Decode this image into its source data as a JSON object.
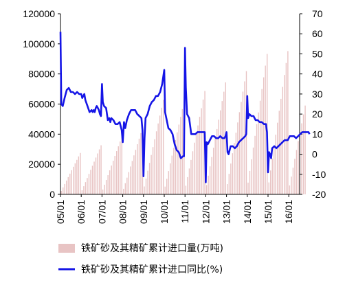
{
  "chart_data": {
    "type": "bar+line",
    "title": "",
    "x_tick_labels": [
      "05/01",
      "06/01",
      "07/01",
      "08/01",
      "09/01",
      "10/01",
      "11/01",
      "12/01",
      "13/01",
      "14/01",
      "15/01",
      "16/01"
    ],
    "y_left": {
      "label": "",
      "min": 0,
      "max": 120000,
      "ticks": [
        "0",
        "20000",
        "40000",
        "60000",
        "80000",
        "100000",
        "120000"
      ]
    },
    "y_right": {
      "label": "",
      "min": -20,
      "max": 70,
      "ticks": [
        "-20",
        "-10",
        "0",
        "10",
        "20",
        "30",
        "40",
        "50",
        "60",
        "70"
      ]
    },
    "grid": false,
    "legend_position": "bottom",
    "bar_year_end_totals": [
      27500,
      32600,
      38300,
      44400,
      62800,
      61800,
      68700,
      74400,
      81900,
      93300,
      95200
    ],
    "bar_last_value": 59000,
    "series": [
      {
        "name": "铁矿砂及其精矿累计进口量(万吨)",
        "type": "bar",
        "axis": "left",
        "color": "#e8c4c4",
        "description_values": "monthly cumulative import volume, resetting each January"
      },
      {
        "name": "铁矿砂及其精矿累计进口同比(%)",
        "type": "line",
        "axis": "right",
        "color": "#1515e6",
        "points": [
          [
            0,
            61
          ],
          [
            0.04,
            25
          ],
          [
            0.11,
            24
          ],
          [
            0.2,
            28
          ],
          [
            0.3,
            32
          ],
          [
            0.4,
            33
          ],
          [
            0.5,
            31
          ],
          [
            0.6,
            31
          ],
          [
            0.7,
            30
          ],
          [
            0.8,
            31
          ],
          [
            0.9,
            30
          ],
          [
            1.0,
            30
          ],
          [
            1.05,
            28
          ],
          [
            1.15,
            30
          ],
          [
            1.2,
            27
          ],
          [
            1.3,
            24
          ],
          [
            1.4,
            21
          ],
          [
            1.5,
            22
          ],
          [
            1.55,
            21
          ],
          [
            1.6,
            22
          ],
          [
            1.65,
            21
          ],
          [
            1.7,
            23
          ],
          [
            1.75,
            24
          ],
          [
            1.8,
            23
          ],
          [
            1.85,
            22
          ],
          [
            1.9,
            20
          ],
          [
            1.95,
            19
          ],
          [
            2.0,
            35
          ],
          [
            2.04,
            26
          ],
          [
            2.1,
            24
          ],
          [
            2.2,
            23
          ],
          [
            2.28,
            17
          ],
          [
            2.35,
            18
          ],
          [
            2.4,
            16
          ],
          [
            2.45,
            18
          ],
          [
            2.55,
            17
          ],
          [
            2.65,
            15
          ],
          [
            2.75,
            15
          ],
          [
            2.85,
            16
          ],
          [
            2.95,
            12
          ],
          [
            3.0,
            6
          ],
          [
            3.06,
            16
          ],
          [
            3.12,
            13
          ],
          [
            3.2,
            17
          ],
          [
            3.3,
            20
          ],
          [
            3.4,
            22
          ],
          [
            3.5,
            22
          ],
          [
            3.6,
            22
          ],
          [
            3.7,
            20
          ],
          [
            3.8,
            19
          ],
          [
            3.9,
            18
          ],
          [
            3.95,
            12
          ],
          [
            4.0,
            -11
          ],
          [
            4.05,
            8
          ],
          [
            4.1,
            18
          ],
          [
            4.2,
            20
          ],
          [
            4.3,
            24
          ],
          [
            4.4,
            26
          ],
          [
            4.5,
            27
          ],
          [
            4.6,
            29
          ],
          [
            4.7,
            29
          ],
          [
            4.8,
            31
          ],
          [
            4.9,
            35
          ],
          [
            5.0,
            42
          ],
          [
            5.04,
            21
          ],
          [
            5.1,
            18
          ],
          [
            5.2,
            13
          ],
          [
            5.3,
            12
          ],
          [
            5.4,
            10
          ],
          [
            5.5,
            5
          ],
          [
            5.6,
            2
          ],
          [
            5.7,
            1
          ],
          [
            5.8,
            -2
          ],
          [
            5.9,
            -1
          ],
          [
            5.95,
            -1
          ],
          [
            6.0,
            53
          ],
          [
            6.04,
            33
          ],
          [
            6.1,
            20
          ],
          [
            6.2,
            18
          ],
          [
            6.3,
            10
          ],
          [
            6.4,
            10
          ],
          [
            6.5,
            10
          ],
          [
            6.6,
            11
          ],
          [
            6.7,
            11
          ],
          [
            6.8,
            11
          ],
          [
            6.9,
            11
          ],
          [
            6.95,
            11
          ],
          [
            7.0,
            -14
          ],
          [
            7.04,
            6
          ],
          [
            7.1,
            5
          ],
          [
            7.2,
            7
          ],
          [
            7.3,
            9
          ],
          [
            7.4,
            9
          ],
          [
            7.5,
            8
          ],
          [
            7.6,
            8
          ],
          [
            7.7,
            9
          ],
          [
            7.8,
            8
          ],
          [
            7.9,
            8
          ],
          [
            7.95,
            9
          ],
          [
            8.0,
            11
          ],
          [
            8.05,
            1
          ],
          [
            8.1,
            0
          ],
          [
            8.2,
            4
          ],
          [
            8.3,
            4
          ],
          [
            8.4,
            3
          ],
          [
            8.5,
            4
          ],
          [
            8.6,
            6
          ],
          [
            8.7,
            7
          ],
          [
            8.8,
            8
          ],
          [
            8.9,
            9
          ],
          [
            8.95,
            10
          ],
          [
            9.0,
            29
          ],
          [
            9.04,
            18
          ],
          [
            9.1,
            20
          ],
          [
            9.2,
            19
          ],
          [
            9.3,
            19
          ],
          [
            9.4,
            17
          ],
          [
            9.5,
            17
          ],
          [
            9.6,
            16
          ],
          [
            9.7,
            16
          ],
          [
            9.8,
            15
          ],
          [
            9.9,
            15
          ],
          [
            9.95,
            11
          ],
          [
            10.0,
            -9
          ],
          [
            10.05,
            1
          ],
          [
            10.1,
            0
          ],
          [
            10.15,
            -2
          ],
          [
            10.2,
            3
          ],
          [
            10.3,
            4
          ],
          [
            10.4,
            3
          ],
          [
            10.5,
            4
          ],
          [
            10.6,
            5
          ],
          [
            10.7,
            6
          ],
          [
            10.8,
            7
          ],
          [
            10.9,
            7
          ],
          [
            10.95,
            7
          ],
          [
            11.0,
            8
          ],
          [
            11.05,
            9
          ],
          [
            11.15,
            9
          ],
          [
            11.25,
            9
          ],
          [
            11.35,
            8
          ],
          [
            11.45,
            9
          ],
          [
            11.55,
            10
          ],
          [
            11.65,
            11
          ],
          [
            11.75,
            11
          ],
          [
            11.85,
            11
          ],
          [
            11.95,
            11
          ],
          [
            12.0,
            10
          ]
        ]
      }
    ]
  },
  "legend": {
    "bar_label": "铁矿砂及其精矿累计进口量(万吨)",
    "line_label": "铁矿砂及其精矿累计进口同比(%)"
  },
  "colors": {
    "bar": "#e8c4c4",
    "line": "#1515e6",
    "axis": "#000000",
    "text": "#000000"
  }
}
